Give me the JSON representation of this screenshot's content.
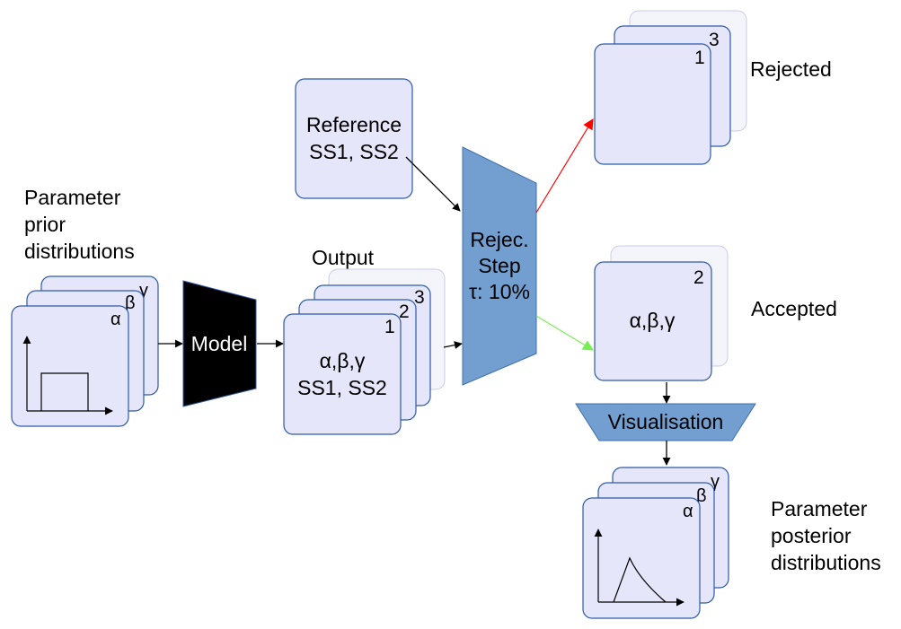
{
  "title": "",
  "labels": {
    "prior": [
      "Parameter",
      "prior",
      "distributions"
    ],
    "model": "Model",
    "output": "Output",
    "output_card": {
      "line1": "α,β,γ",
      "line2": "SS1, SS2"
    },
    "reference": [
      "Reference",
      "SS1, SS2"
    ],
    "rejection_step": [
      "Rejec.",
      "Step",
      "τ: 10%"
    ],
    "rejected": "Rejected",
    "accepted": "Accepted",
    "accepted_card": "α,β,γ",
    "visualisation": "Visualisation",
    "posterior": [
      "Parameter",
      "posterior",
      "distributions"
    ]
  },
  "stack_numbers": {
    "first": "1",
    "second": "2",
    "third": "3"
  },
  "greek": {
    "alpha": "α",
    "beta": "β",
    "gamma": "γ"
  },
  "colors": {
    "card_fill": "#e6e6fa",
    "card_border": "#2e5aa6",
    "rejection_step_fill": "#729fcf",
    "visualisation_fill": "#729fcf",
    "model_fill": "#000000",
    "rejected_arrow": "#ff0000",
    "accepted_arrow": "#77ee55"
  }
}
